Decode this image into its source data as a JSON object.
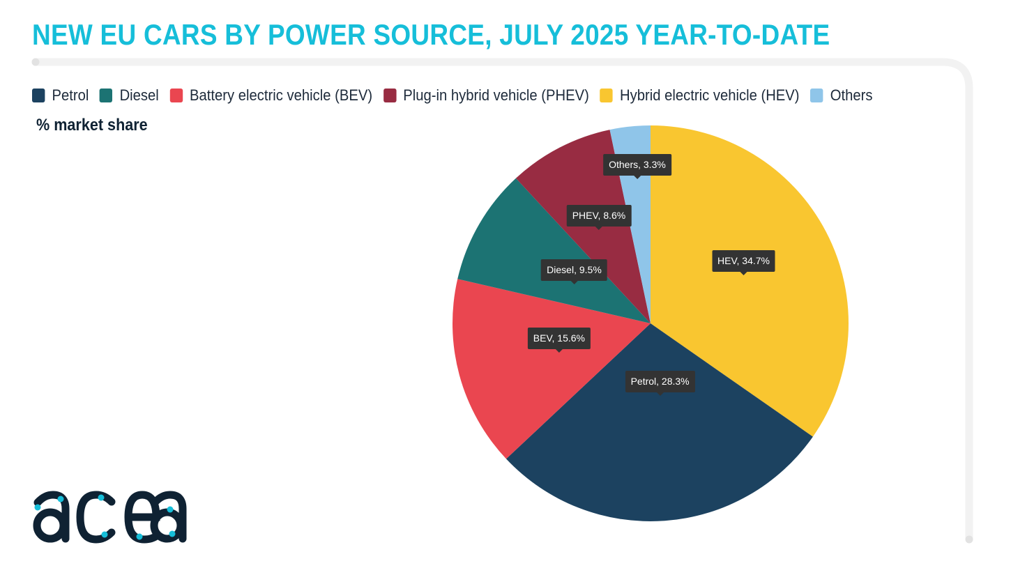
{
  "title": "NEW EU CARS BY POWER SOURCE, JULY 2025 YEAR-TO-DATE",
  "subtitle": "% market share",
  "logo_text": "acea",
  "colors": {
    "title": "#16bed9",
    "frame": "#f2f2f2",
    "tooltip_bg": "#333333",
    "logo_dark": "#0f2233",
    "logo_dots": "#16bed9"
  },
  "chart_data": {
    "type": "pie",
    "title": "NEW EU CARS BY POWER SOURCE, JULY 2025 YEAR-TO-DATE",
    "unit": "% market share",
    "legend_position": "top-left",
    "legend": [
      {
        "name": "Petrol",
        "color": "#1c4260"
      },
      {
        "name": "Diesel",
        "color": "#1c7373"
      },
      {
        "name": "Battery electric vehicle (BEV)",
        "color": "#ea4650"
      },
      {
        "name": "Plug-in hybrid vehicle (PHEV)",
        "color": "#982c42"
      },
      {
        "name": "Hybrid electric vehicle (HEV)",
        "color": "#f9c630"
      },
      {
        "name": "Others",
        "color": "#8fc5e9"
      }
    ],
    "slices": [
      {
        "label": "HEV, 34.7%",
        "short": "HEV",
        "value": 34.7,
        "color": "#f9c630"
      },
      {
        "label": "Petrol, 28.3%",
        "short": "Petrol",
        "value": 28.3,
        "color": "#1c4260"
      },
      {
        "label": "BEV, 15.6%",
        "short": "BEV",
        "value": 15.6,
        "color": "#ea4650"
      },
      {
        "label": "Diesel, 9.5%",
        "short": "Diesel",
        "value": 9.5,
        "color": "#1c7373"
      },
      {
        "label": "PHEV, 8.6%",
        "short": "PHEV",
        "value": 8.6,
        "color": "#982c42"
      },
      {
        "label": "Others, 3.3%",
        "short": "Others",
        "value": 3.3,
        "color": "#8fc5e9"
      }
    ]
  }
}
